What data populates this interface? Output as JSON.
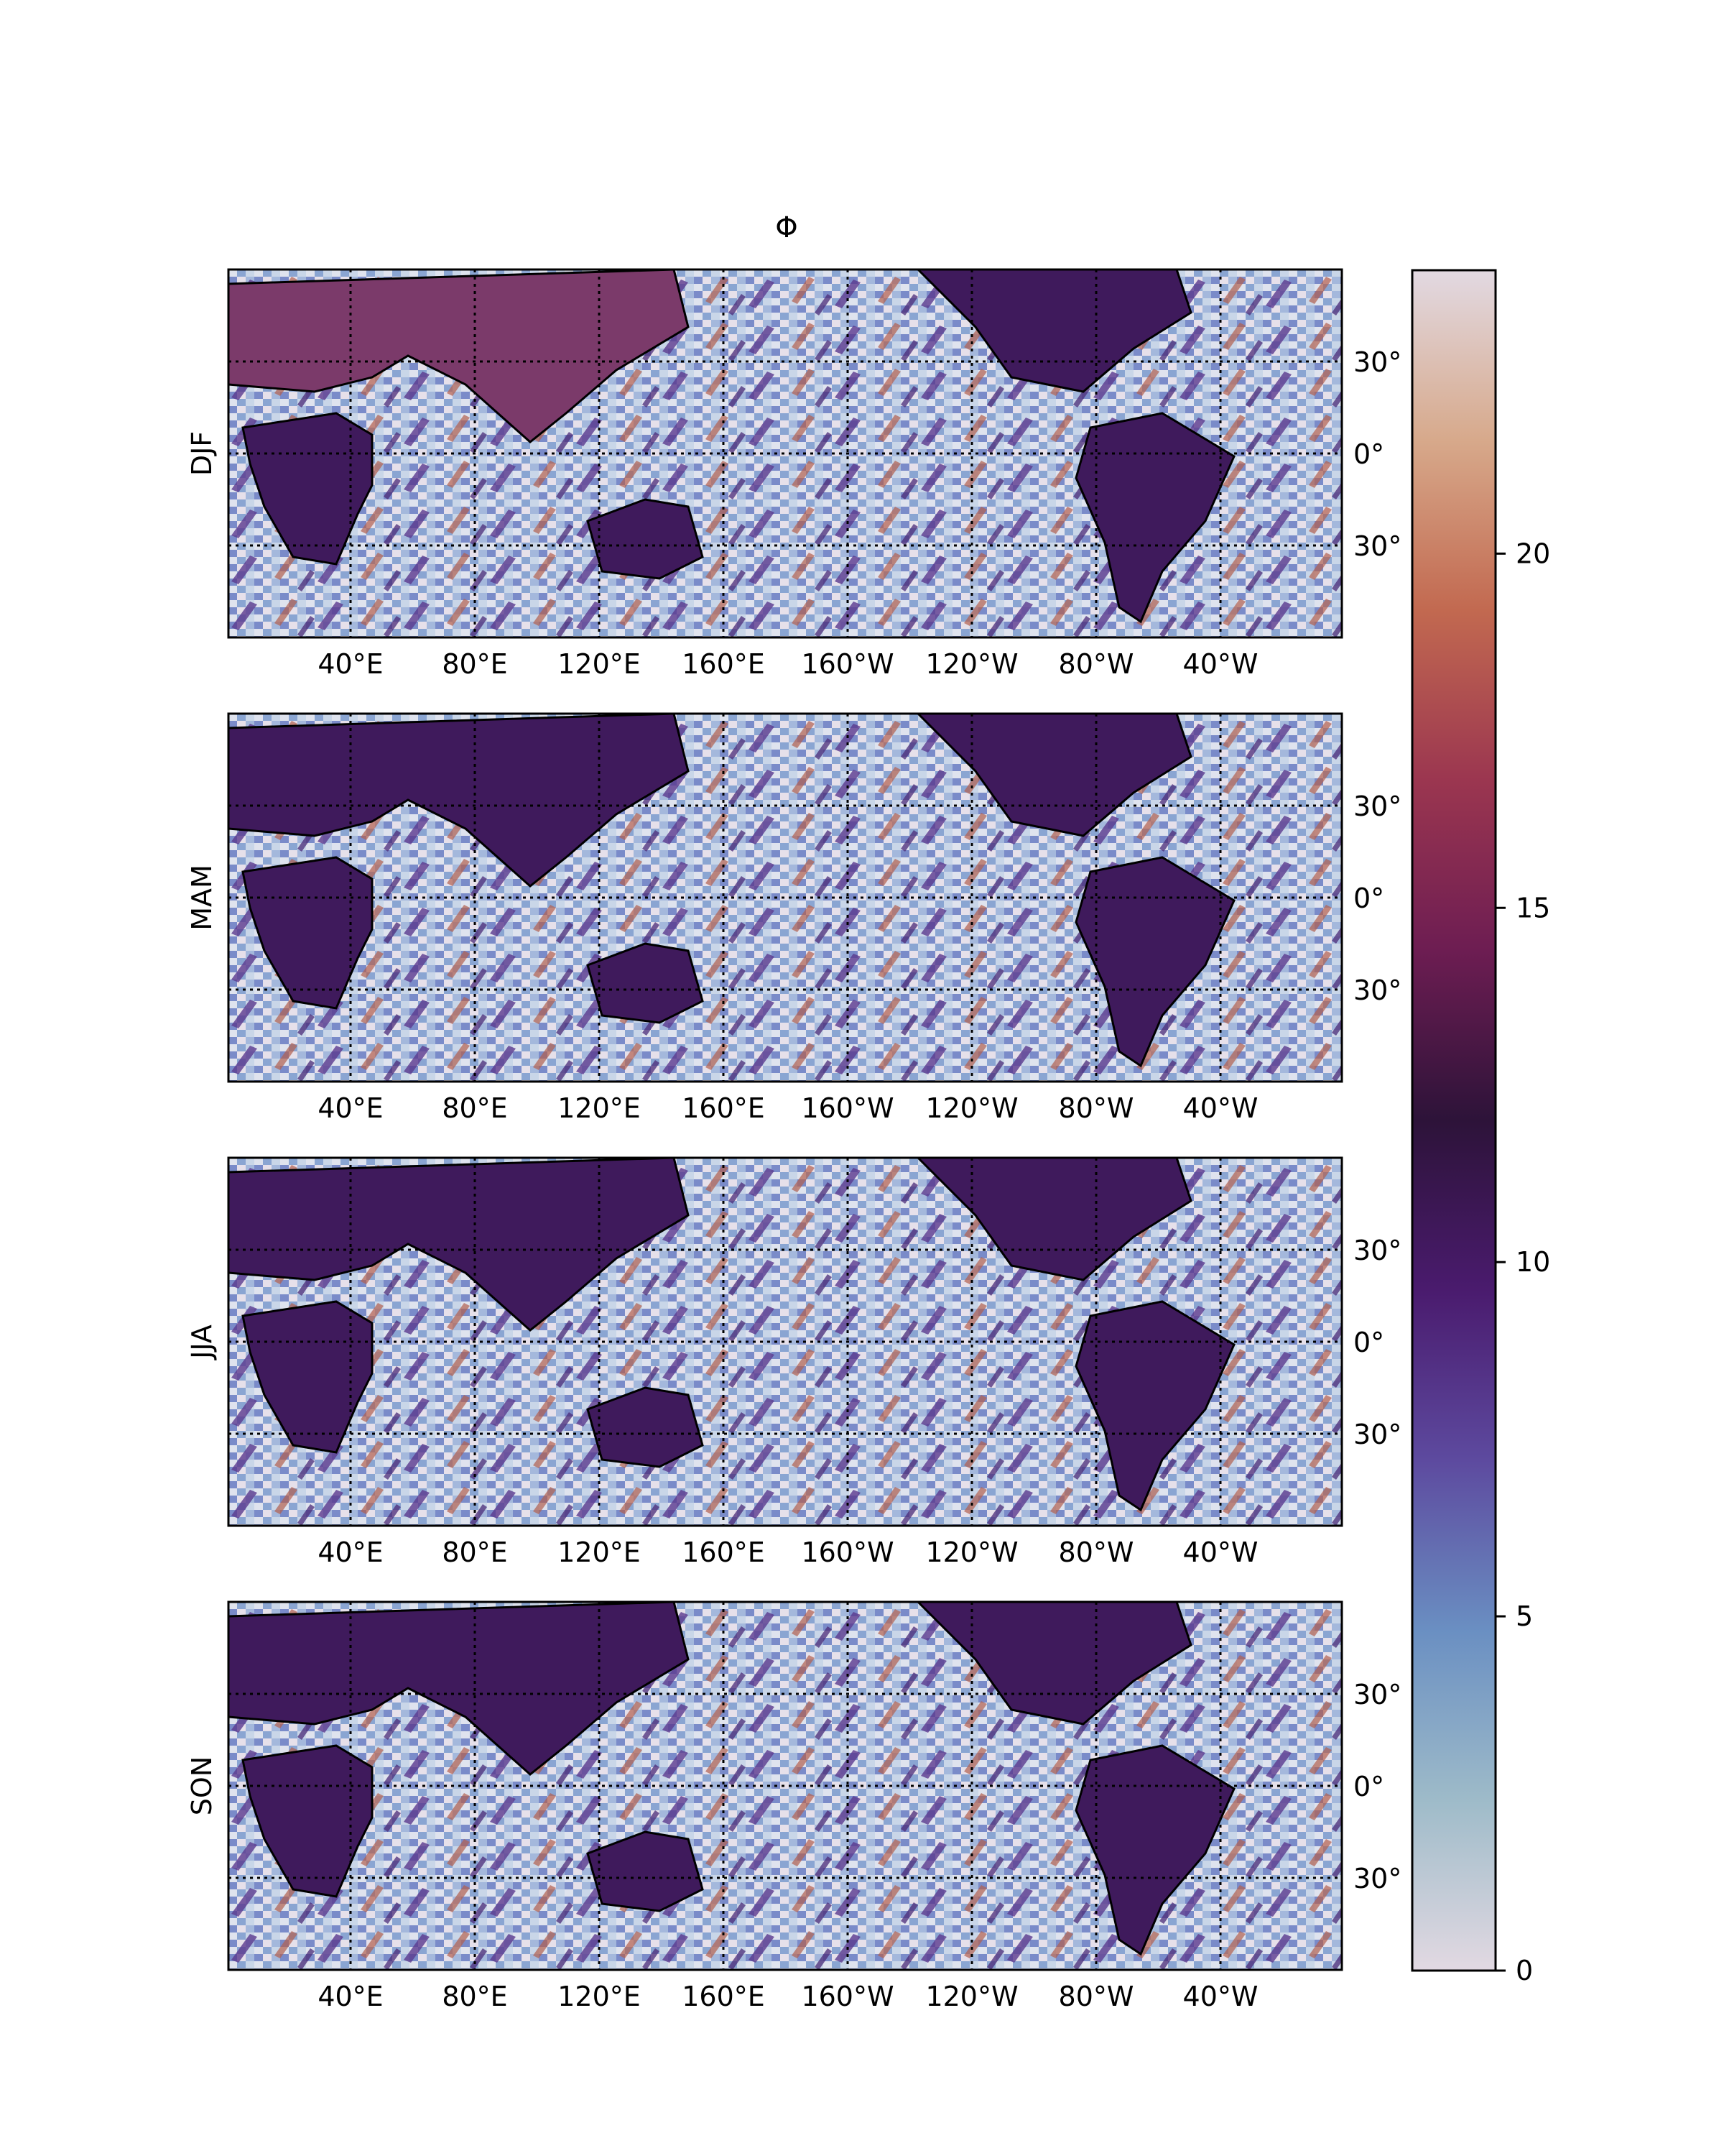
{
  "figure": {
    "title": "Φ"
  },
  "panels": [
    {
      "season": "DJF"
    },
    {
      "season": "MAM"
    },
    {
      "season": "JJA"
    },
    {
      "season": "SON"
    }
  ],
  "axes": {
    "lon_ticks": [
      "40°E",
      "80°E",
      "120°E",
      "160°E",
      "160°W",
      "120°W",
      "80°W",
      "40°W"
    ],
    "lat_ticks": [
      "30°",
      "0°",
      "30°"
    ]
  },
  "colorbar": {
    "ticks": [
      "0",
      "5",
      "10",
      "15",
      "20"
    ],
    "tick_values": [
      0,
      5,
      10,
      15,
      20
    ],
    "range": [
      0,
      24
    ],
    "colormap": "twilight-half",
    "stops": [
      "#e2d9e2",
      "#9ebbc9",
      "#6a8fc2",
      "#5d4a9f",
      "#4a1b6e",
      "#2d1339",
      "#6d1d52",
      "#9b3650",
      "#c26950",
      "#d7a98b",
      "#e2d9e2"
    ]
  },
  "map_colors": {
    "land": "#3f1a5c",
    "coastline": "#000000",
    "gridline": "#000000"
  }
}
